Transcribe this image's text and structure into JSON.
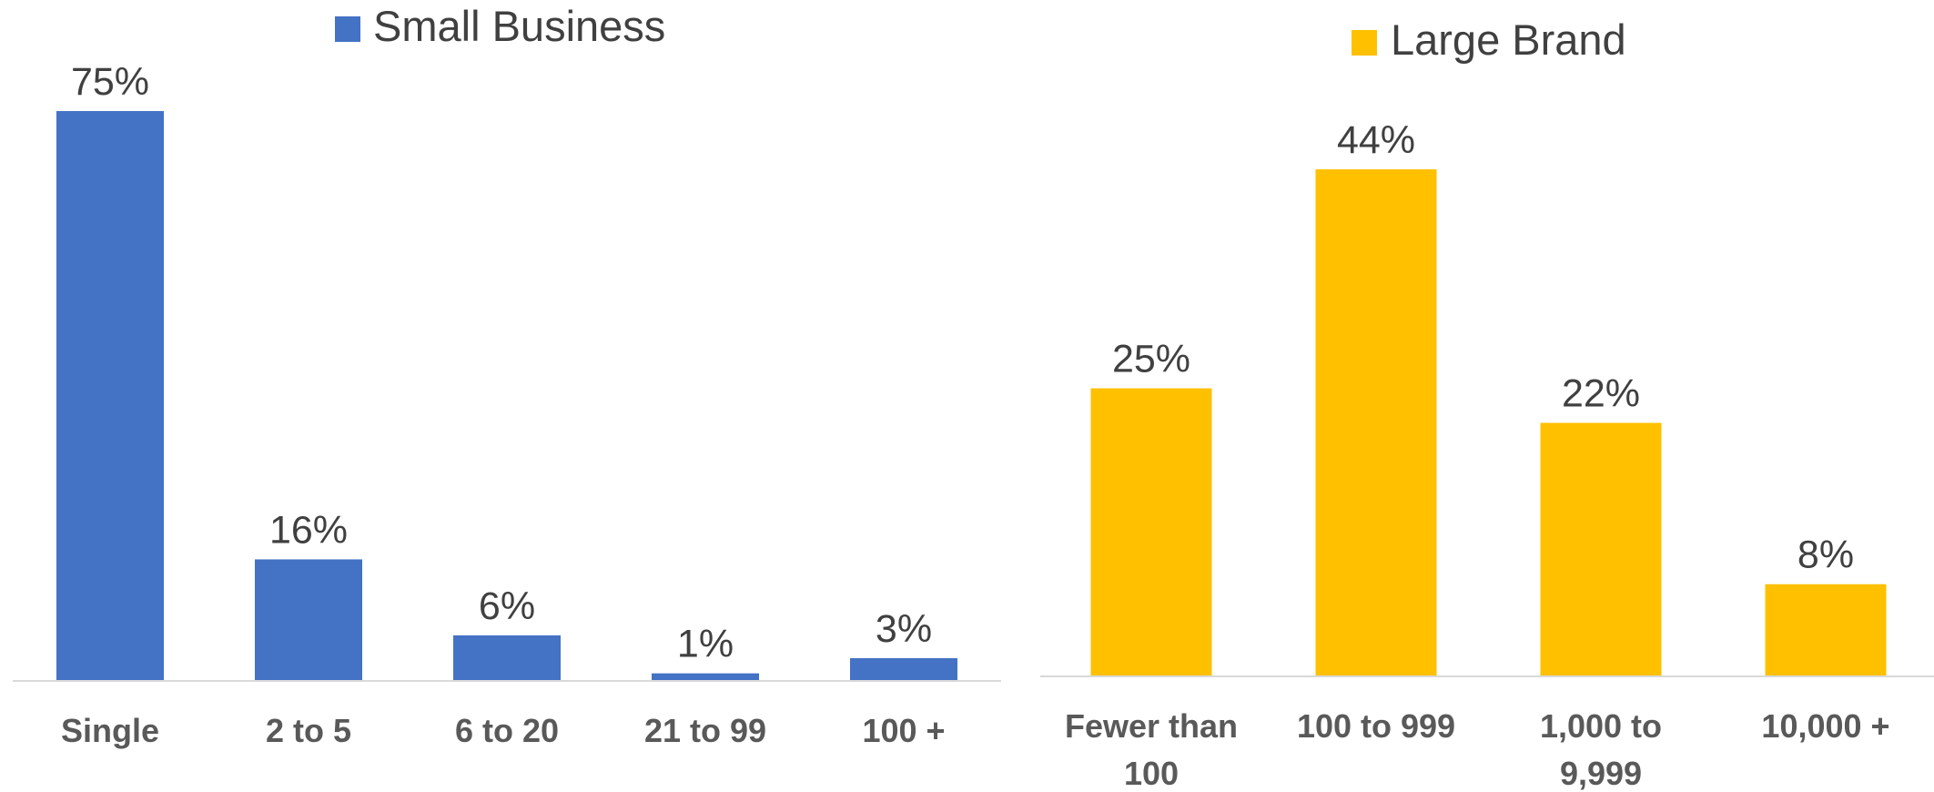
{
  "chart_data": [
    {
      "type": "bar",
      "title": "",
      "xlabel": "",
      "ylabel": "",
      "ylim": [
        0,
        75
      ],
      "categories": [
        "Single",
        "2 to 5",
        "6 to 20",
        "21 to 99",
        "100 +"
      ],
      "series": [
        {
          "name": "Small Business",
          "values": [
            75,
            16,
            6,
            1,
            3
          ],
          "labels": [
            "75%",
            "16%",
            "6%",
            "1%",
            "3%"
          ],
          "color": "#4472C4"
        }
      ],
      "legend": "top-center",
      "grid": false
    },
    {
      "type": "bar",
      "title": "",
      "xlabel": "",
      "ylabel": "",
      "ylim": [
        0,
        44
      ],
      "categories": [
        "Fewer than 100",
        "100 to 999",
        "1,000 to 9,999",
        "10,000 +"
      ],
      "series": [
        {
          "name": "Large Brand",
          "values": [
            25,
            44,
            22,
            8
          ],
          "labels": [
            "25%",
            "44%",
            "22%",
            "8%"
          ],
          "color": "#FFC000"
        }
      ],
      "legend": "top-center",
      "grid": false
    }
  ]
}
